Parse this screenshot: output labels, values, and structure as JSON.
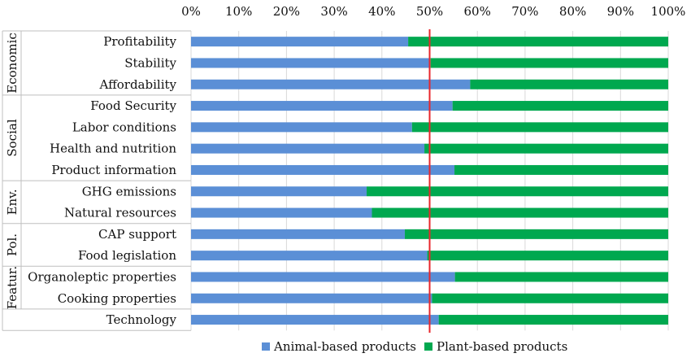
{
  "chart_data": {
    "type": "bar",
    "stacked": true,
    "orientation": "horizontal",
    "xlim": [
      0,
      100
    ],
    "x_tick_labels": [
      "0%",
      "10%",
      "20%",
      "30%",
      "40%",
      "50%",
      "60%",
      "70%",
      "80%",
      "90%",
      "100%"
    ],
    "categories": [
      "Profitability",
      "Stability",
      "Affordability",
      "Food Security",
      "Labor conditions",
      "Health and nutrition",
      "Product information",
      "GHG emissions",
      "Natural resources",
      "CAP support",
      "Food legislation",
      "Organoleptic properties",
      "Cooking properties",
      "Technology"
    ],
    "groups": [
      {
        "label": "Economic",
        "categories": [
          "Profitability",
          "Stability",
          "Affordability"
        ]
      },
      {
        "label": "Social",
        "categories": [
          "Food Security",
          "Labor conditions",
          "Health and nutrition",
          "Product information"
        ]
      },
      {
        "label": "Env.",
        "categories": [
          "GHG emissions",
          "Natural resources"
        ]
      },
      {
        "label": "Pol.",
        "categories": [
          "CAP support",
          "Food legislation"
        ]
      },
      {
        "label": "Featur.",
        "categories": [
          "Organoleptic properties",
          "Cooking properties"
        ]
      },
      {
        "label": "",
        "categories": [
          "Technology"
        ]
      }
    ],
    "series": [
      {
        "name": "Animal-based products",
        "color": "#5b8fd6",
        "values": [
          45.5,
          50.2,
          58.5,
          54.8,
          46.3,
          48.9,
          55.2,
          36.8,
          37.9,
          44.8,
          49.5,
          55.3,
          50.5,
          51.9
        ]
      },
      {
        "name": "Plant-based products",
        "color": "#00a84f",
        "values": [
          54.5,
          49.8,
          41.5,
          45.2,
          53.7,
          51.1,
          44.8,
          63.2,
          62.1,
          55.2,
          50.5,
          44.7,
          49.5,
          48.1
        ]
      }
    ],
    "reference_line": {
      "value": 50,
      "color": "#e8262b"
    },
    "legend_position": "bottom"
  }
}
